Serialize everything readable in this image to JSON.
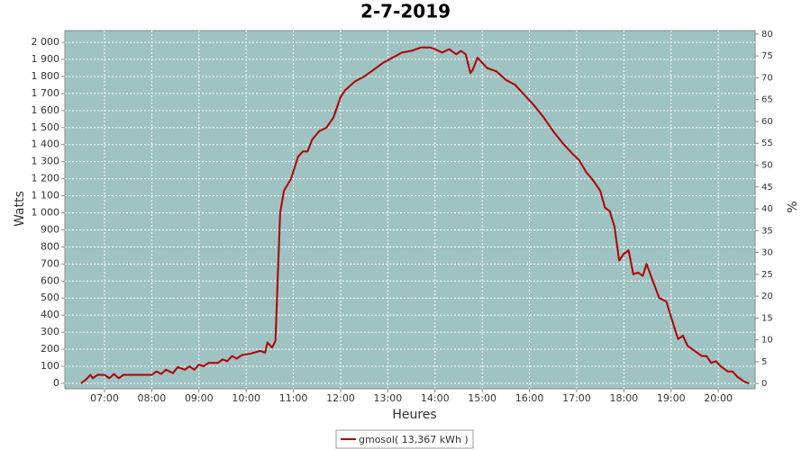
{
  "chart_data": {
    "type": "line",
    "title": "2-7-2019",
    "xlabel": "Heures",
    "ylabel": "Watts",
    "y2label": "%",
    "x": [
      6.5,
      6.6,
      6.7,
      6.75,
      6.85,
      7.0,
      7.1,
      7.2,
      7.3,
      7.4,
      7.5,
      7.7,
      8.0,
      8.1,
      8.2,
      8.3,
      8.45,
      8.55,
      8.7,
      8.8,
      8.9,
      9.0,
      9.1,
      9.2,
      9.4,
      9.5,
      9.6,
      9.7,
      9.8,
      9.9,
      10.1,
      10.3,
      10.4,
      10.45,
      10.55,
      10.62,
      10.68,
      10.72,
      10.8,
      10.95,
      11.1,
      11.2,
      11.3,
      11.4,
      11.55,
      11.7,
      11.85,
      12.0,
      12.1,
      12.3,
      12.5,
      12.7,
      12.9,
      13.1,
      13.3,
      13.5,
      13.7,
      13.9,
      14.0,
      14.15,
      14.3,
      14.45,
      14.55,
      14.65,
      14.75,
      14.8,
      14.9,
      15.0,
      15.1,
      15.3,
      15.5,
      15.7,
      15.9,
      16.1,
      16.3,
      16.5,
      16.7,
      16.9,
      17.05,
      17.2,
      17.35,
      17.5,
      17.6,
      17.7,
      17.8,
      17.9,
      18.0,
      18.1,
      18.2,
      18.3,
      18.4,
      18.48,
      18.6,
      18.75,
      18.9,
      19.0,
      19.1,
      19.15,
      19.25,
      19.35,
      19.5,
      19.65,
      19.75,
      19.85,
      19.95,
      20.05,
      20.2,
      20.3,
      20.4,
      20.55,
      20.65
    ],
    "series": [
      {
        "name": "gmosol( 13,367 kWh )",
        "color": "#b00000",
        "values": [
          0,
          20,
          50,
          30,
          50,
          50,
          30,
          55,
          30,
          50,
          50,
          50,
          50,
          70,
          55,
          80,
          60,
          95,
          80,
          100,
          80,
          110,
          100,
          120,
          120,
          140,
          130,
          160,
          145,
          165,
          175,
          190,
          180,
          240,
          210,
          250,
          700,
          1000,
          1130,
          1200,
          1330,
          1360,
          1360,
          1430,
          1480,
          1500,
          1560,
          1680,
          1720,
          1770,
          1800,
          1840,
          1880,
          1910,
          1940,
          1950,
          1970,
          1970,
          1960,
          1940,
          1960,
          1930,
          1950,
          1930,
          1820,
          1840,
          1910,
          1880,
          1850,
          1830,
          1780,
          1750,
          1690,
          1630,
          1560,
          1480,
          1410,
          1350,
          1310,
          1240,
          1190,
          1130,
          1030,
          1010,
          920,
          720,
          760,
          780,
          640,
          650,
          630,
          700,
          610,
          500,
          480,
          390,
          300,
          260,
          280,
          220,
          190,
          160,
          160,
          120,
          130,
          100,
          70,
          70,
          40,
          10,
          0
        ]
      }
    ],
    "xlim": [
      6.16,
      20.78
    ],
    "xticks": [
      {
        "value": 7,
        "label": "07:00"
      },
      {
        "value": 8,
        "label": "08:00"
      },
      {
        "value": 9,
        "label": "09:00"
      },
      {
        "value": 10,
        "label": "10:00"
      },
      {
        "value": 11,
        "label": "11:00"
      },
      {
        "value": 12,
        "label": "12:00"
      },
      {
        "value": 13,
        "label": "13:00"
      },
      {
        "value": 14,
        "label": "14:00"
      },
      {
        "value": 15,
        "label": "15:00"
      },
      {
        "value": 16,
        "label": "16:00"
      },
      {
        "value": 17,
        "label": "17:00"
      },
      {
        "value": 18,
        "label": "18:00"
      },
      {
        "value": 19,
        "label": "19:00"
      },
      {
        "value": 20,
        "label": "20:00"
      }
    ],
    "ylim": [
      -32,
      2069
    ],
    "yticks": [
      0,
      100,
      200,
      300,
      400,
      500,
      600,
      700,
      800,
      900,
      {
        "value": 1000,
        "label": "1 000"
      },
      {
        "value": 1100,
        "label": "1 100"
      },
      {
        "value": 1200,
        "label": "1 200"
      },
      {
        "value": 1300,
        "label": "1 300"
      },
      {
        "value": 1400,
        "label": "1 400"
      },
      {
        "value": 1500,
        "label": "1 500"
      },
      {
        "value": 1600,
        "label": "1 600"
      },
      {
        "value": 1700,
        "label": "1 700"
      },
      {
        "value": 1800,
        "label": "1 800"
      },
      {
        "value": 1900,
        "label": "1 900"
      },
      {
        "value": 2000,
        "label": "2 000"
      }
    ],
    "y2lim": [
      -1.2,
      80.8
    ],
    "y2ticks": [
      0,
      5,
      10,
      15,
      20,
      25,
      30,
      35,
      40,
      45,
      50,
      55,
      60,
      65,
      70,
      75,
      80
    ],
    "grid": true,
    "background": "#9fc2c2"
  }
}
